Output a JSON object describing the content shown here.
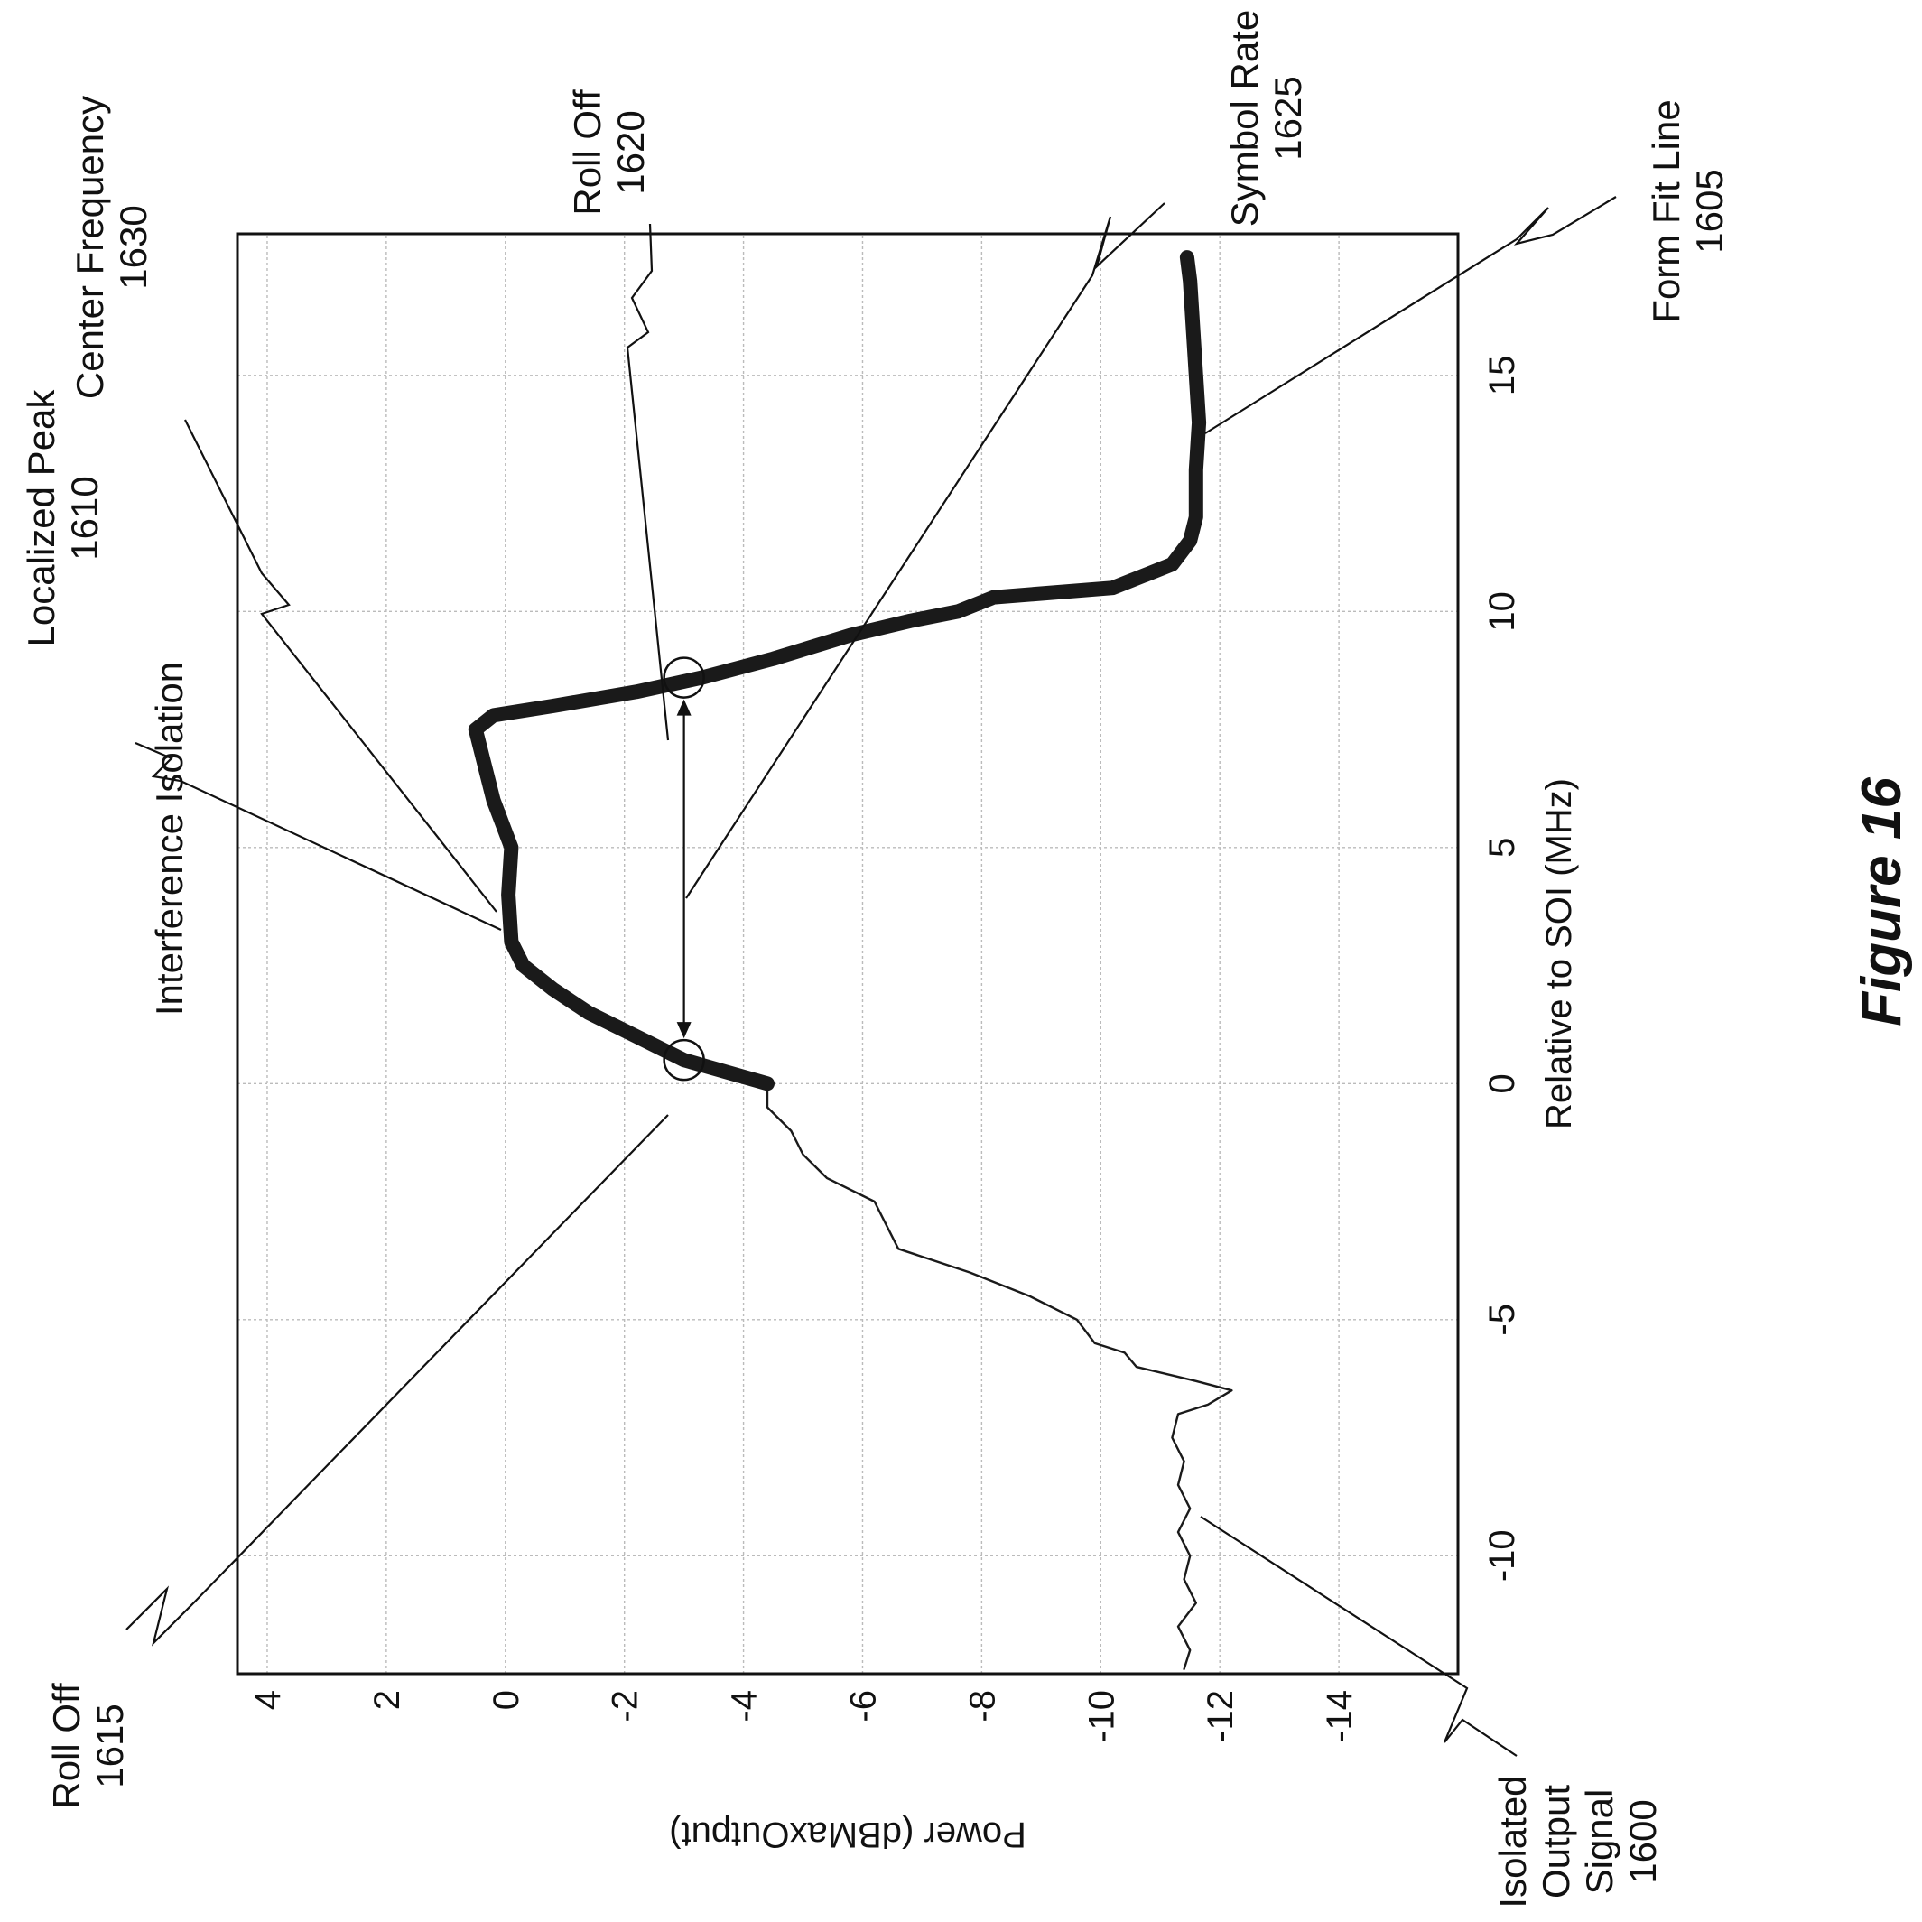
{
  "figure": {
    "title": "Figure 16"
  },
  "chart_data": {
    "type": "line",
    "xlabel": "Relative to SOI (MHz)",
    "ylabel": "Power (dBMaxOutput)",
    "xlim": [
      -12.5,
      18
    ],
    "ylim": [
      -16,
      4.5
    ],
    "x_ticks": [
      "-10",
      "-5",
      "0",
      "5",
      "10",
      "15"
    ],
    "x_tick_values": [
      -10,
      -5,
      0,
      5,
      10,
      15
    ],
    "y_ticks": [
      "4",
      "2",
      "0",
      "-2",
      "-4",
      "-6",
      "-8",
      "-10",
      "-12",
      "-14"
    ],
    "y_tick_values": [
      4,
      2,
      0,
      -2,
      -4,
      -6,
      -8,
      -10,
      -12,
      -14
    ],
    "grid": true,
    "series": [
      {
        "style": "thin",
        "x": [
          -12.4,
          -12,
          -11.5,
          -11,
          -10.5,
          -10,
          -9.5,
          -9,
          -8.5,
          -8,
          -7.5,
          -7,
          -6.8,
          -6.5,
          -6.3,
          -6,
          -5.7,
          -5.5,
          -5,
          -4.5,
          -4,
          -3.5,
          -3,
          -2.5,
          -2,
          -1.5,
          -1,
          -0.5,
          0
        ],
        "y": [
          -11.4,
          -11.5,
          -11.3,
          -11.6,
          -11.4,
          -11.5,
          -11.3,
          -11.5,
          -11.3,
          -11.4,
          -11.2,
          -11.3,
          -11.8,
          -12.2,
          -11.6,
          -10.6,
          -10.4,
          -9.9,
          -9.6,
          -8.8,
          -7.8,
          -6.6,
          -6.4,
          -6.2,
          -5.4,
          -5.0,
          -4.8,
          -4.4,
          -4.4
        ]
      },
      {
        "style": "thick",
        "x": [
          0,
          0.5,
          1,
          1.5,
          2,
          2.5,
          3,
          4,
          5,
          6,
          7,
          7.5,
          7.8,
          8,
          8.3,
          8.6,
          9,
          9.5,
          9.8,
          10,
          10.3,
          10.5,
          11,
          11.5,
          12,
          13,
          14,
          15,
          16,
          17,
          17.5
        ],
        "y": [
          -4.4,
          -3.0,
          -2.2,
          -1.4,
          -0.8,
          -0.3,
          -0.1,
          -0.05,
          -0.1,
          0.2,
          0.4,
          0.5,
          0.2,
          -0.8,
          -2.2,
          -3.3,
          -4.5,
          -5.8,
          -6.8,
          -7.6,
          -8.2,
          -10.2,
          -11.2,
          -11.5,
          -11.6,
          -11.6,
          -11.65,
          -11.6,
          -11.55,
          -11.5,
          -11.45
        ]
      }
    ],
    "markers": [
      {
        "shape": "circle",
        "x": 0.5,
        "y": -3.0
      },
      {
        "shape": "circle",
        "x": 8.6,
        "y": -3.0
      }
    ],
    "arrow": {
      "x1": 0.5,
      "x2": 8.6,
      "y": -3.0,
      "label": "Symbol Rate"
    }
  },
  "callouts": {
    "roll_off_1615": {
      "title": "Roll Off",
      "ref": "1615"
    },
    "interference_isolation": {
      "title": "Interference Isolation"
    },
    "localized_peak_1610": {
      "title": "Localized Peak",
      "ref": "1610"
    },
    "center_frequency_1630": {
      "title": "Center Frequency",
      "ref": "1630"
    },
    "roll_off_1620": {
      "title": "Roll Off",
      "ref": "1620"
    },
    "symbol_rate_1625": {
      "title": "Symbol Rate",
      "ref": "1625"
    },
    "form_fit_line_1605": {
      "title": "Form Fit Line",
      "ref": "1605"
    },
    "isolated_output_signal_1600": {
      "lines": [
        "Isolated",
        "Output",
        "Signal",
        "1600"
      ]
    }
  }
}
